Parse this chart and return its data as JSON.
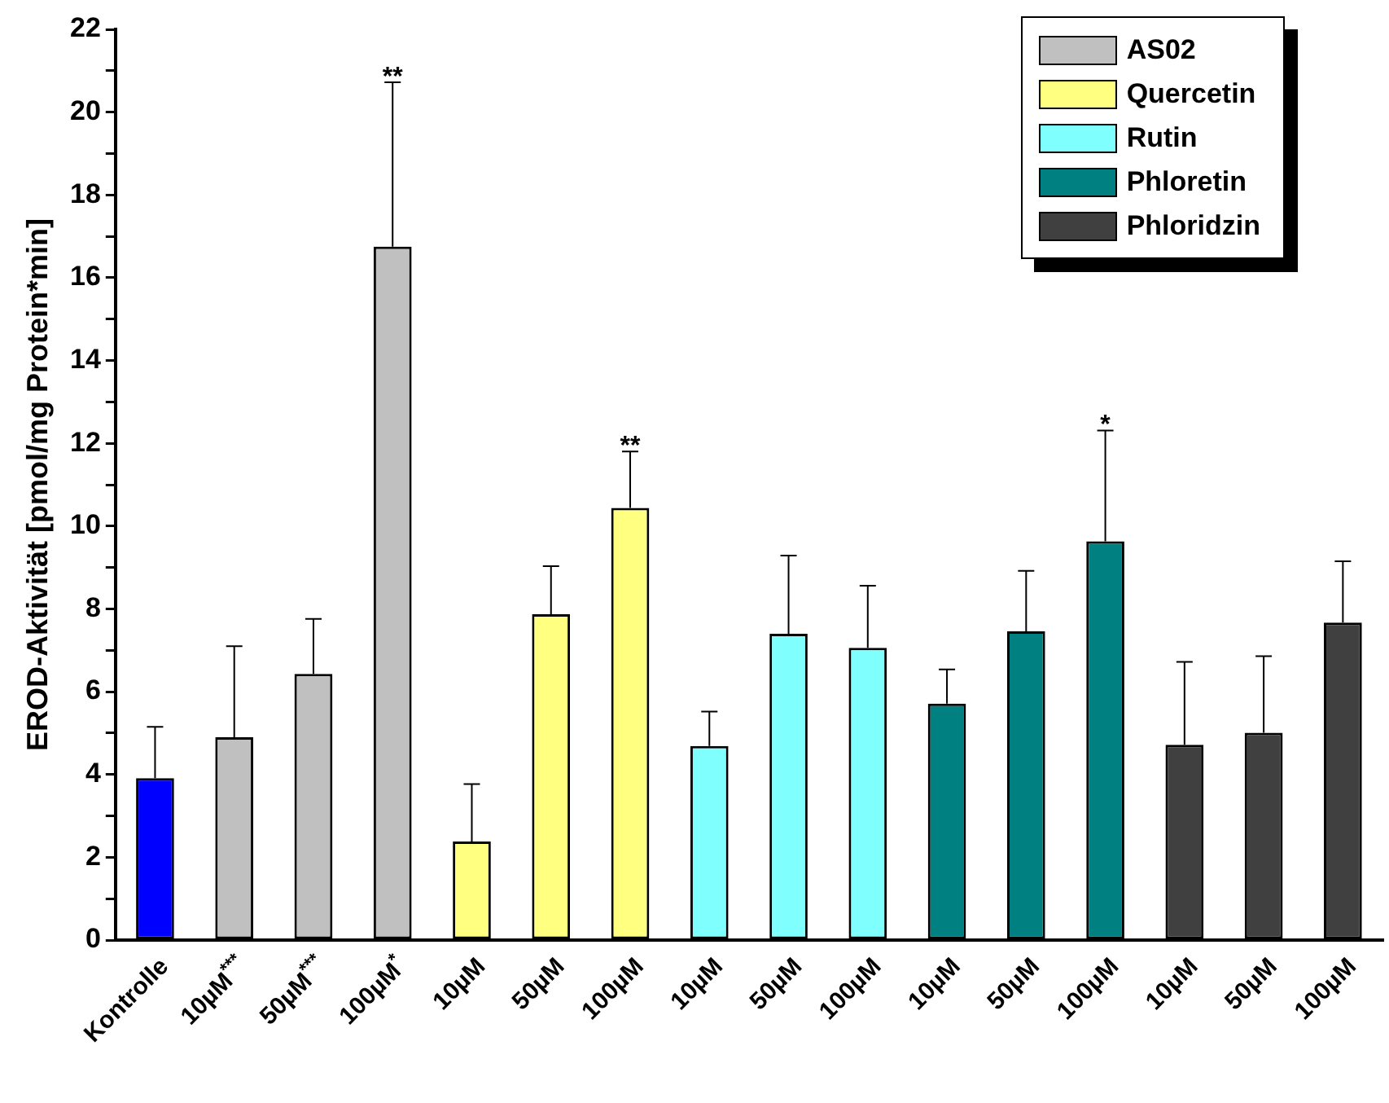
{
  "chart_data": {
    "type": "bar",
    "ylabel": "EROD-Aktivität [pmol/mg Protein*min]",
    "categories": [
      "Kontrolle",
      "10µM$^{***}$",
      "50µM$^{***}$",
      "100µM$^{*}$",
      "10µM",
      "50µM",
      "100µM",
      "10µM",
      "50µM",
      "100µM",
      "10µM",
      "50µM",
      "100µM",
      "10µM",
      "50µM",
      "100µM"
    ],
    "series": [
      {
        "color": "#0000ff",
        "values": [
          3.91,
          null,
          null,
          null,
          null,
          null,
          null,
          null,
          null,
          null,
          null,
          null,
          null,
          null,
          null,
          null
        ],
        "errors": [
          1.24,
          null,
          null,
          null,
          null,
          null,
          null,
          null,
          null,
          null,
          null,
          null,
          null,
          null,
          null,
          null
        ]
      },
      {
        "name": "AS02",
        "color": "#c0c0c0",
        "values": [
          null,
          4.9,
          6.43,
          16.75,
          null,
          null,
          null,
          null,
          null,
          null,
          null,
          null,
          null,
          null,
          null,
          null
        ],
        "errors": [
          null,
          2.2,
          1.33,
          3.97,
          null,
          null,
          null,
          null,
          null,
          null,
          null,
          null,
          null,
          null,
          null,
          null
        ]
      },
      {
        "name": "Quercetin",
        "color": "#ffff80",
        "values": [
          null,
          null,
          null,
          null,
          2.38,
          7.87,
          10.44,
          null,
          null,
          null,
          null,
          null,
          null,
          null,
          null,
          null
        ],
        "errors": [
          null,
          null,
          null,
          null,
          1.39,
          1.16,
          1.36,
          null,
          null,
          null,
          null,
          null,
          null,
          null,
          null,
          null
        ]
      },
      {
        "name": "Rutin",
        "color": "#80ffff",
        "values": [
          null,
          null,
          null,
          null,
          null,
          null,
          null,
          4.69,
          7.4,
          7.06,
          null,
          null,
          null,
          null,
          null,
          null
        ],
        "errors": [
          null,
          null,
          null,
          null,
          null,
          null,
          null,
          0.83,
          1.89,
          1.5,
          null,
          null,
          null,
          null,
          null,
          null
        ]
      },
      {
        "name": "Phloretin",
        "color": "#008080",
        "values": [
          null,
          null,
          null,
          null,
          null,
          null,
          null,
          null,
          null,
          null,
          5.71,
          7.46,
          9.63,
          null,
          null,
          null
        ],
        "errors": [
          null,
          null,
          null,
          null,
          null,
          null,
          null,
          null,
          null,
          null,
          0.83,
          1.46,
          2.68,
          null,
          null,
          null
        ]
      },
      {
        "name": "Phloridzin",
        "color": "#404040",
        "values": [
          null,
          null,
          null,
          null,
          null,
          null,
          null,
          null,
          null,
          null,
          null,
          null,
          null,
          4.72,
          5.01,
          7.67
        ],
        "errors": [
          null,
          null,
          null,
          null,
          null,
          null,
          null,
          null,
          null,
          null,
          null,
          null,
          null,
          2.0,
          1.85,
          1.48
        ]
      }
    ],
    "ylim": [
      0,
      22
    ],
    "yticks": [
      0,
      {
        "value": 1,
        "label": null
      },
      2,
      {
        "value": 3,
        "label": null
      },
      4,
      {
        "value": 5,
        "label": null
      },
      6,
      {
        "value": 7,
        "label": null
      },
      8,
      {
        "value": 9,
        "label": null
      },
      10,
      {
        "value": 11,
        "label": null
      },
      12,
      {
        "value": 13,
        "label": null
      },
      14,
      {
        "value": 15,
        "label": null
      },
      16,
      {
        "value": 17,
        "label": null
      },
      18,
      {
        "value": 19,
        "label": null
      },
      20,
      {
        "value": 21,
        "label": null
      },
      22
    ],
    "annotations": [
      {
        "text": "**",
        "x": "100µM$^{*}$",
        "y": 20.72
      },
      {
        "text": "**",
        "x": "100µM",
        "y": 11.8
      },
      {
        "text": "*",
        "y": 12.31
      }
    ],
    "grid": false,
    "legend": "top right"
  }
}
